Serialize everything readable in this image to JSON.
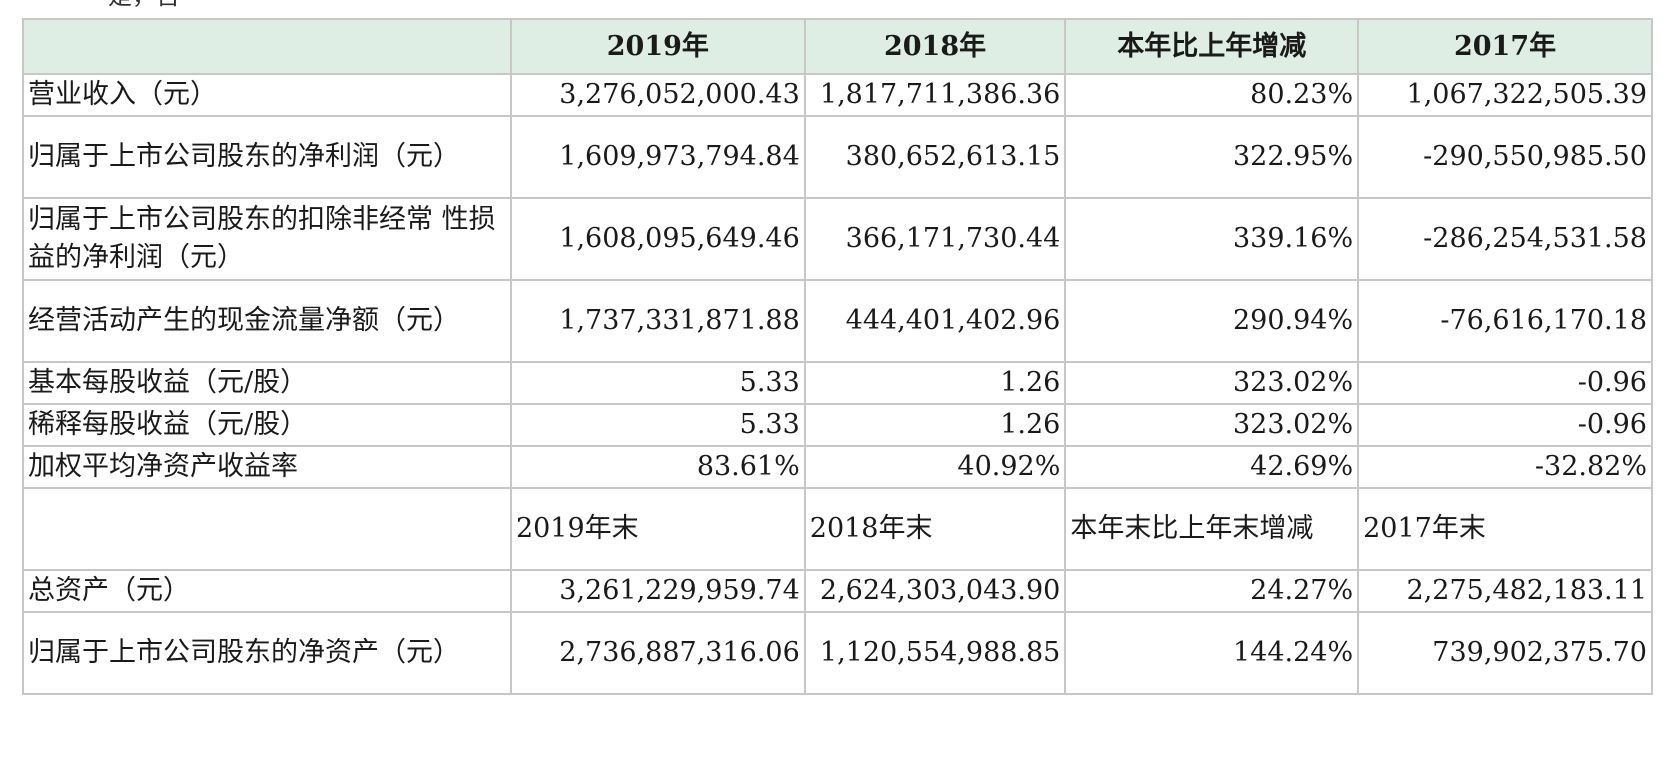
{
  "top_fragment": "是，否",
  "header": {
    "blank": "",
    "col1": "2019年",
    "col2": "2018年",
    "col3": "本年比上年增减",
    "col4": "2017年"
  },
  "rows_a": [
    {
      "label": "营业收入（元）",
      "v2019": "3,276,052,000.43",
      "v2018": "1,817,711,386.36",
      "change": "80.23%",
      "v2017": "1,067,322,505.39"
    },
    {
      "label": "归属于上市公司股东的净利润（元）",
      "v2019": "1,609,973,794.84",
      "v2018": "380,652,613.15",
      "change": "322.95%",
      "v2017": "-290,550,985.50"
    },
    {
      "label": "归属于上市公司股东的扣除非经常 性损益的净利润（元）",
      "v2019": "1,608,095,649.46",
      "v2018": "366,171,730.44",
      "change": "339.16%",
      "v2017": "-286,254,531.58"
    },
    {
      "label": "经营活动产生的现金流量净额（元）",
      "v2019": "1,737,331,871.88",
      "v2018": "444,401,402.96",
      "change": "290.94%",
      "v2017": "-76,616,170.18"
    },
    {
      "label": "基本每股收益（元/股）",
      "v2019": "5.33",
      "v2018": "1.26",
      "change": "323.02%",
      "v2017": "-0.96"
    },
    {
      "label": "稀释每股收益（元/股）",
      "v2019": "5.33",
      "v2018": "1.26",
      "change": "323.02%",
      "v2017": "-0.96"
    },
    {
      "label": "加权平均净资产收益率",
      "v2019": "83.61%",
      "v2018": "40.92%",
      "change": "42.69%",
      "v2017": "-32.82%"
    }
  ],
  "subheader": {
    "blank": "",
    "col1": "2019年末",
    "col2": "2018年末",
    "col3": "本年末比上年末增减",
    "col4": "2017年末"
  },
  "rows_b": [
    {
      "label": "总资产（元）",
      "v2019": "3,261,229,959.74",
      "v2018": "2,624,303,043.90",
      "change": "24.27%",
      "v2017": "2,275,482,183.11"
    },
    {
      "label": "归属于上市公司股东的净资产（元）",
      "v2019": "2,736,887,316.06",
      "v2018": "1,120,554,988.85",
      "change": "144.24%",
      "v2017": "739,902,375.70"
    }
  ]
}
